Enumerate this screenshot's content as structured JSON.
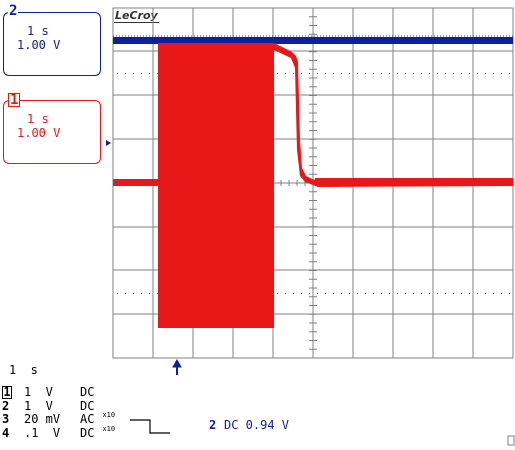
{
  "brand": "LeCroy",
  "colors": {
    "ch1": "#e81818",
    "ch2": "#10209a",
    "grid": "#808080",
    "text": "#000000"
  },
  "channel2_box": {
    "number": "2",
    "timebase": "1 s",
    "volts": "1.00 V"
  },
  "channel1_box": {
    "number": "1",
    "timebase": "1 s",
    "volts": "1.00 V"
  },
  "status": {
    "timebase": "1  s",
    "channels": [
      {
        "num": "1",
        "scale": "1  V",
        "coupling": "DC",
        "probe": ""
      },
      {
        "num": "2",
        "scale": "1  V",
        "coupling": "DC",
        "probe": ""
      },
      {
        "num": "3",
        "scale": "20 mV",
        "coupling": "AC",
        "probe": "x10"
      },
      {
        "num": "4",
        "scale": ".1  V",
        "coupling": "DC",
        "probe": "x10"
      }
    ]
  },
  "trigger": {
    "source": "2",
    "text": "DC 0.94 V"
  },
  "icons": {
    "trigger_position": "up-arrow-icon",
    "trigger_level": "right-arrow-icon",
    "trigger_slope": "falling-edge-icon"
  }
}
